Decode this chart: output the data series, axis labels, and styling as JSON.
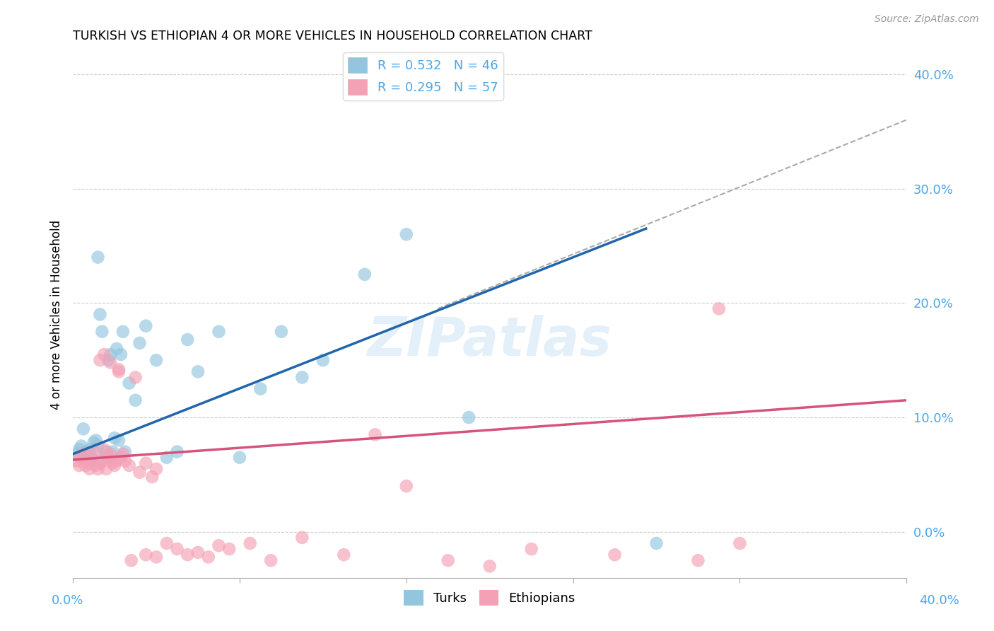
{
  "title": "TURKISH VS ETHIOPIAN 4 OR MORE VEHICLES IN HOUSEHOLD CORRELATION CHART",
  "source": "Source: ZipAtlas.com",
  "ylabel": "4 or more Vehicles in Household",
  "xlim": [
    0.0,
    0.4
  ],
  "ylim": [
    -0.04,
    0.42
  ],
  "yticks": [
    0.0,
    0.1,
    0.2,
    0.3,
    0.4
  ],
  "ytick_labels": [
    "0.0%",
    "10.0%",
    "20.0%",
    "30.0%",
    "40.0%"
  ],
  "xticks": [
    0.0,
    0.08,
    0.16,
    0.24,
    0.32,
    0.4
  ],
  "watermark": "ZIPatlas",
  "legend_turks_r": "R = 0.532",
  "legend_turks_n": "N = 46",
  "legend_ethiopians_r": "R = 0.295",
  "legend_ethiopians_n": "N = 57",
  "turks_color": "#92c5de",
  "ethiopians_color": "#f4a0b5",
  "turks_line_color": "#2166ac",
  "ethiopians_line_color": "#d6537a",
  "dashed_line_color": "#aaaaaa",
  "turks_scatter_x": [
    0.002,
    0.003,
    0.004,
    0.005,
    0.006,
    0.007,
    0.008,
    0.008,
    0.009,
    0.01,
    0.011,
    0.012,
    0.013,
    0.014,
    0.015,
    0.016,
    0.017,
    0.018,
    0.019,
    0.02,
    0.021,
    0.022,
    0.023,
    0.024,
    0.025,
    0.027,
    0.03,
    0.032,
    0.035,
    0.04,
    0.045,
    0.05,
    0.055,
    0.06,
    0.07,
    0.08,
    0.09,
    0.1,
    0.11,
    0.12,
    0.14,
    0.16,
    0.19,
    0.28,
    0.005,
    0.012
  ],
  "turks_scatter_y": [
    0.068,
    0.072,
    0.075,
    0.065,
    0.07,
    0.068,
    0.072,
    0.06,
    0.065,
    0.078,
    0.08,
    0.075,
    0.19,
    0.175,
    0.065,
    0.07,
    0.15,
    0.155,
    0.07,
    0.082,
    0.16,
    0.08,
    0.155,
    0.175,
    0.07,
    0.13,
    0.115,
    0.165,
    0.18,
    0.15,
    0.065,
    0.07,
    0.168,
    0.14,
    0.175,
    0.065,
    0.125,
    0.175,
    0.135,
    0.15,
    0.225,
    0.26,
    0.1,
    -0.01,
    0.09,
    0.24
  ],
  "ethiopians_scatter_x": [
    0.002,
    0.003,
    0.004,
    0.005,
    0.006,
    0.007,
    0.008,
    0.009,
    0.01,
    0.011,
    0.012,
    0.013,
    0.014,
    0.015,
    0.016,
    0.017,
    0.018,
    0.019,
    0.02,
    0.021,
    0.022,
    0.023,
    0.024,
    0.025,
    0.027,
    0.03,
    0.032,
    0.035,
    0.038,
    0.04,
    0.045,
    0.05,
    0.055,
    0.06,
    0.065,
    0.07,
    0.075,
    0.085,
    0.095,
    0.11,
    0.13,
    0.145,
    0.16,
    0.18,
    0.2,
    0.22,
    0.26,
    0.3,
    0.31,
    0.32,
    0.013,
    0.015,
    0.018,
    0.022,
    0.028,
    0.035,
    0.04
  ],
  "ethiopians_scatter_y": [
    0.062,
    0.058,
    0.065,
    0.068,
    0.058,
    0.062,
    0.055,
    0.065,
    0.07,
    0.058,
    0.055,
    0.06,
    0.062,
    0.072,
    0.055,
    0.065,
    0.068,
    0.06,
    0.058,
    0.062,
    0.14,
    0.065,
    0.068,
    0.062,
    0.058,
    0.135,
    0.052,
    0.06,
    0.048,
    0.055,
    -0.01,
    -0.015,
    -0.02,
    -0.018,
    -0.022,
    -0.012,
    -0.015,
    -0.01,
    -0.025,
    -0.005,
    -0.02,
    0.085,
    0.04,
    -0.025,
    -0.03,
    -0.015,
    -0.02,
    -0.025,
    0.195,
    -0.01,
    0.15,
    0.155,
    0.148,
    0.142,
    -0.025,
    -0.02,
    -0.022
  ],
  "turks_line_x": [
    0.0,
    0.275
  ],
  "turks_line_y": [
    0.068,
    0.265
  ],
  "ethiopians_line_x": [
    0.0,
    0.4
  ],
  "ethiopians_line_y": [
    0.063,
    0.115
  ],
  "dashed_line_x": [
    0.175,
    0.4
  ],
  "dashed_line_y": [
    0.195,
    0.36
  ]
}
